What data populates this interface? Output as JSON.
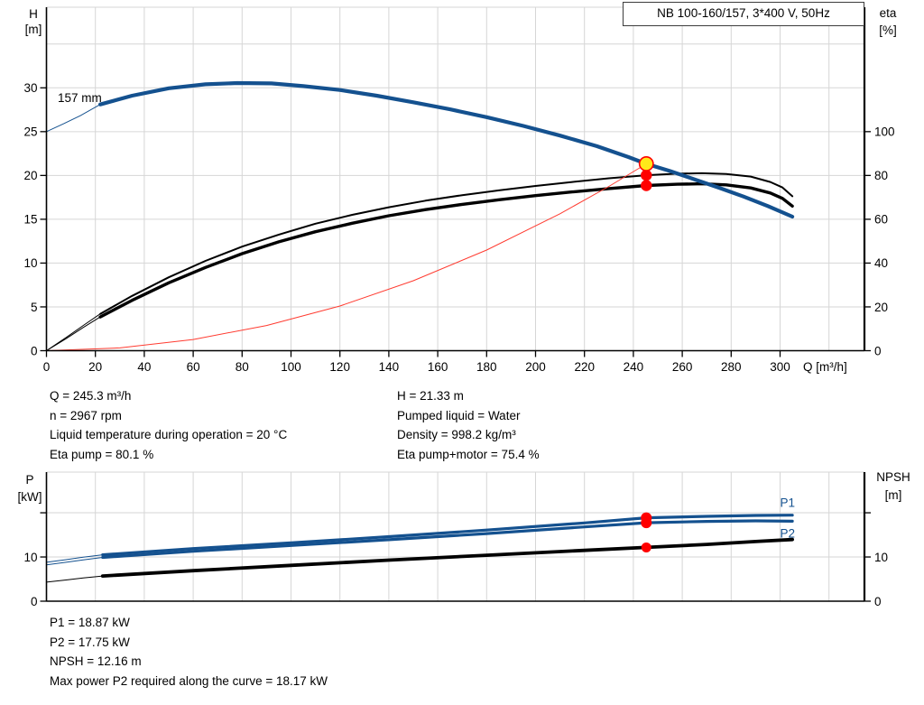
{
  "colors": {
    "curve_blue": "#14518F",
    "curve_black": "#000000",
    "system_red": "#FF3B30",
    "dot_red": "#FF0000",
    "duty_yellow": "#FFE81A",
    "grid": "#D6D6D6",
    "axis": "#000000",
    "text": "#000000"
  },
  "operating_point_info": {
    "left": [
      "Q = 245.3 m³/h",
      "n = 2967 rpm",
      "Liquid temperature during operation = 20 °C",
      "Eta pump = 80.1 %"
    ],
    "right": [
      "H = 21.33 m",
      "Pumped liquid = Water",
      "Density = 998.2 kg/m³",
      "Eta pump+motor = 75.4 %"
    ]
  },
  "results_info": [
    "P1 = 18.87 kW",
    "P2 = 17.75 kW",
    "NPSH = 12.16 m",
    "Max power P2 required along the curve = 18.17 kW"
  ],
  "chart_data": [
    {
      "name": "qh-performance-chart",
      "type": "line",
      "title": "NB 100-160/157, 3*400 V, 50Hz",
      "x_axis": {
        "label": "Q [m³/h]",
        "min": 0,
        "max": 334.5,
        "ticks": [
          0,
          20,
          40,
          60,
          80,
          100,
          120,
          140,
          160,
          180,
          200,
          220,
          240,
          260,
          280,
          300
        ],
        "gridlines": [
          20,
          40,
          60,
          80,
          100,
          120,
          140,
          160,
          180,
          200,
          220,
          240,
          260,
          280,
          300,
          320
        ],
        "show_tick_labels": true
      },
      "y_left": {
        "label_lines": [
          "H",
          "[m]"
        ],
        "min": 0,
        "max": 39.2,
        "ticks": [
          0,
          5,
          10,
          15,
          20,
          25,
          30
        ],
        "tick_labels": [
          "0",
          "5",
          "10",
          "15",
          "20",
          "25",
          "30"
        ],
        "gridlines": [
          5,
          10,
          15,
          20,
          25,
          30,
          35
        ]
      },
      "y_right": {
        "label_lines": [
          "eta",
          "[%]"
        ],
        "min": 0,
        "max": 156.8,
        "ticks": [
          0,
          20,
          40,
          60,
          80,
          100
        ],
        "tick_labels": [
          "0",
          "20",
          "40",
          "60",
          "80",
          "100"
        ]
      },
      "series": [
        {
          "name": "eta-pump-lead-in",
          "axis": "right",
          "color": "#000000",
          "width": 1,
          "points": [
            [
              0,
              0
            ],
            [
              8,
              6
            ],
            [
              15,
              11.5
            ],
            [
              22,
              16.8
            ]
          ]
        },
        {
          "name": "eta-pump-curve",
          "axis": "right",
          "color": "#000000",
          "width": 2,
          "points": [
            [
              22,
              16.8
            ],
            [
              35,
              25
            ],
            [
              50,
              33.5
            ],
            [
              65,
              41
            ],
            [
              80,
              47.5
            ],
            [
              95,
              53
            ],
            [
              110,
              58
            ],
            [
              125,
              62
            ],
            [
              140,
              65.5
            ],
            [
              155,
              68.5
            ],
            [
              170,
              71
            ],
            [
              185,
              73.2
            ],
            [
              200,
              75.2
            ],
            [
              215,
              77
            ],
            [
              230,
              78.7
            ],
            [
              245.3,
              80.1
            ],
            [
              258,
              80.8
            ],
            [
              268,
              81
            ],
            [
              278,
              80.7
            ],
            [
              288,
              79.5
            ],
            [
              296,
              77
            ],
            [
              301,
              74.5
            ],
            [
              305,
              70.5
            ]
          ]
        },
        {
          "name": "eta-pump-motor-lead-in",
          "axis": "right",
          "color": "#000000",
          "width": 1,
          "points": [
            [
              0,
              0
            ],
            [
              8,
              5.5
            ],
            [
              15,
              10.6
            ],
            [
              22,
              15.4
            ]
          ]
        },
        {
          "name": "eta-pump-motor-curve",
          "axis": "right",
          "color": "#000000",
          "width": 3.4,
          "points": [
            [
              22,
              15.4
            ],
            [
              35,
              23
            ],
            [
              50,
              31
            ],
            [
              65,
              38
            ],
            [
              80,
              44.3
            ],
            [
              95,
              49.7
            ],
            [
              110,
              54.3
            ],
            [
              125,
              58.2
            ],
            [
              140,
              61.6
            ],
            [
              155,
              64.4
            ],
            [
              170,
              66.8
            ],
            [
              185,
              68.9
            ],
            [
              200,
              70.8
            ],
            [
              215,
              72.5
            ],
            [
              230,
              74
            ],
            [
              245.3,
              75.4
            ],
            [
              258,
              76
            ],
            [
              268,
              76.2
            ],
            [
              278,
              75.7
            ],
            [
              288,
              74.3
            ],
            [
              296,
              72
            ],
            [
              301,
              69.5
            ],
            [
              305,
              66
            ]
          ]
        },
        {
          "name": "system-curve",
          "axis": "left",
          "color": "#FF3B30",
          "width": 1,
          "points": [
            [
              0,
              0
            ],
            [
              30,
              0.32
            ],
            [
              60,
              1.28
            ],
            [
              90,
              2.87
            ],
            [
              120,
              5.1
            ],
            [
              150,
              7.98
            ],
            [
              180,
              11.49
            ],
            [
              210,
              15.63
            ],
            [
              230,
              18.75
            ],
            [
              245.3,
              21.33
            ]
          ]
        },
        {
          "name": "pump-curve-lead-in",
          "axis": "left",
          "color": "#14518F",
          "width": 1,
          "points": [
            [
              0,
              25
            ],
            [
              7,
              25.9
            ],
            [
              14,
              26.85
            ],
            [
              22,
              28.1
            ]
          ]
        },
        {
          "name": "pump-curve-157mm",
          "axis": "left",
          "color": "#14518F",
          "width": 4.2,
          "points": [
            [
              22,
              28.1
            ],
            [
              35,
              29.1
            ],
            [
              50,
              29.95
            ],
            [
              65,
              30.4
            ],
            [
              78,
              30.55
            ],
            [
              92,
              30.5
            ],
            [
              105,
              30.2
            ],
            [
              120,
              29.75
            ],
            [
              135,
              29.1
            ],
            [
              150,
              28.35
            ],
            [
              165,
              27.55
            ],
            [
              180,
              26.65
            ],
            [
              195,
              25.65
            ],
            [
              210,
              24.55
            ],
            [
              225,
              23.35
            ],
            [
              238,
              22.1
            ],
            [
              245.3,
              21.33
            ],
            [
              255,
              20.5
            ],
            [
              265,
              19.55
            ],
            [
              275,
              18.6
            ],
            [
              285,
              17.6
            ],
            [
              295,
              16.5
            ],
            [
              305,
              15.3
            ]
          ]
        }
      ],
      "markers": [
        {
          "name": "eta-pump-point",
          "axis": "right",
          "q": 245.3,
          "v": 80.1,
          "r": 6.2,
          "fill": "#FF0000"
        },
        {
          "name": "eta-pump-motor-point",
          "axis": "right",
          "q": 245.3,
          "v": 75.4,
          "r": 6.2,
          "fill": "#FF0000"
        },
        {
          "name": "duty-point-marker",
          "axis": "left",
          "q": 245.3,
          "v": 21.33,
          "r": 7.6,
          "fill": "#FFE81A",
          "stroke": "#FF0000",
          "sw": 1.6
        }
      ],
      "annotations": [
        {
          "name": "impeller-diameter-label",
          "text": "157 mm",
          "q": 4.6,
          "v": 28.4,
          "axis": "left",
          "color": "#000000"
        }
      ]
    },
    {
      "name": "power-npsh-chart",
      "type": "line",
      "x_axis": {
        "label": "",
        "min": 0,
        "max": 334.5,
        "ticks": [],
        "gridlines": [
          20,
          40,
          60,
          80,
          100,
          120,
          140,
          160,
          180,
          200,
          220,
          240,
          260,
          280,
          300,
          320
        ],
        "show_tick_labels": false
      },
      "y_left": {
        "label_lines": [
          "P",
          "[kW]"
        ],
        "min": 0,
        "max": 29.2,
        "ticks": [
          0,
          10,
          20
        ],
        "tick_labels": [
          "0",
          "10",
          ""
        ],
        "gridlines": [
          10,
          20
        ]
      },
      "y_right": {
        "label_lines": [
          "NPSH",
          "[m]"
        ],
        "min": 0,
        "max": 29.2,
        "ticks": [
          0,
          10,
          20
        ],
        "tick_labels": [
          "0",
          "10",
          ""
        ]
      },
      "series": [
        {
          "name": "npsh-lead-in",
          "axis": "right",
          "color": "#000000",
          "width": 1,
          "points": [
            [
              0,
              4.3
            ],
            [
              8,
              4.8
            ],
            [
              15,
              5.25
            ],
            [
              23,
              5.7
            ]
          ]
        },
        {
          "name": "npsh-curve",
          "axis": "right",
          "color": "#000000",
          "width": 3.8,
          "points": [
            [
              23,
              5.7
            ],
            [
              60,
              6.9
            ],
            [
              100,
              8.1
            ],
            [
              140,
              9.3
            ],
            [
              180,
              10.4
            ],
            [
              220,
              11.5
            ],
            [
              245.3,
              12.16
            ],
            [
              270,
              12.85
            ],
            [
              290,
              13.5
            ],
            [
              305,
              13.95
            ]
          ]
        },
        {
          "name": "p2-lead-in",
          "axis": "left",
          "color": "#14518F",
          "width": 1,
          "points": [
            [
              0,
              8.2
            ],
            [
              8,
              8.8
            ],
            [
              15,
              9.35
            ],
            [
              23,
              9.9
            ]
          ]
        },
        {
          "name": "p2-curve",
          "axis": "left",
          "color": "#14518F",
          "width": 3.2,
          "points": [
            [
              23,
              9.9
            ],
            [
              60,
              11.3
            ],
            [
              100,
              12.6
            ],
            [
              140,
              13.9
            ],
            [
              180,
              15.3
            ],
            [
              220,
              16.8
            ],
            [
              245.3,
              17.75
            ],
            [
              270,
              18.05
            ],
            [
              290,
              18.17
            ],
            [
              305,
              18.1
            ]
          ]
        },
        {
          "name": "p1-lead-in",
          "axis": "left",
          "color": "#14518F",
          "width": 1,
          "points": [
            [
              0,
              8.8
            ],
            [
              8,
              9.4
            ],
            [
              15,
              9.95
            ],
            [
              23,
              10.5
            ]
          ]
        },
        {
          "name": "p1-curve",
          "axis": "left",
          "color": "#14518F",
          "width": 3.2,
          "points": [
            [
              23,
              10.5
            ],
            [
              60,
              11.9
            ],
            [
              100,
              13.2
            ],
            [
              140,
              14.6
            ],
            [
              180,
              16.1
            ],
            [
              220,
              17.7
            ],
            [
              245.3,
              18.87
            ],
            [
              270,
              19.2
            ],
            [
              290,
              19.4
            ],
            [
              305,
              19.45
            ]
          ]
        }
      ],
      "markers": [
        {
          "name": "p1-point",
          "axis": "left",
          "q": 245.3,
          "v": 18.87,
          "r": 6,
          "fill": "#FF0000"
        },
        {
          "name": "p2-point",
          "axis": "left",
          "q": 245.3,
          "v": 17.75,
          "r": 6,
          "fill": "#FF0000"
        },
        {
          "name": "npsh-point",
          "axis": "right",
          "q": 245.3,
          "v": 12.16,
          "r": 5.5,
          "fill": "#FF0000"
        }
      ],
      "annotations": [
        {
          "name": "p1-curve-label",
          "text": "P1",
          "q": 300,
          "v": 21.3,
          "axis": "left",
          "color": "#14518F"
        },
        {
          "name": "p2-curve-label",
          "text": "P2",
          "q": 300,
          "v": 14.4,
          "axis": "left",
          "color": "#14518F"
        }
      ]
    }
  ]
}
